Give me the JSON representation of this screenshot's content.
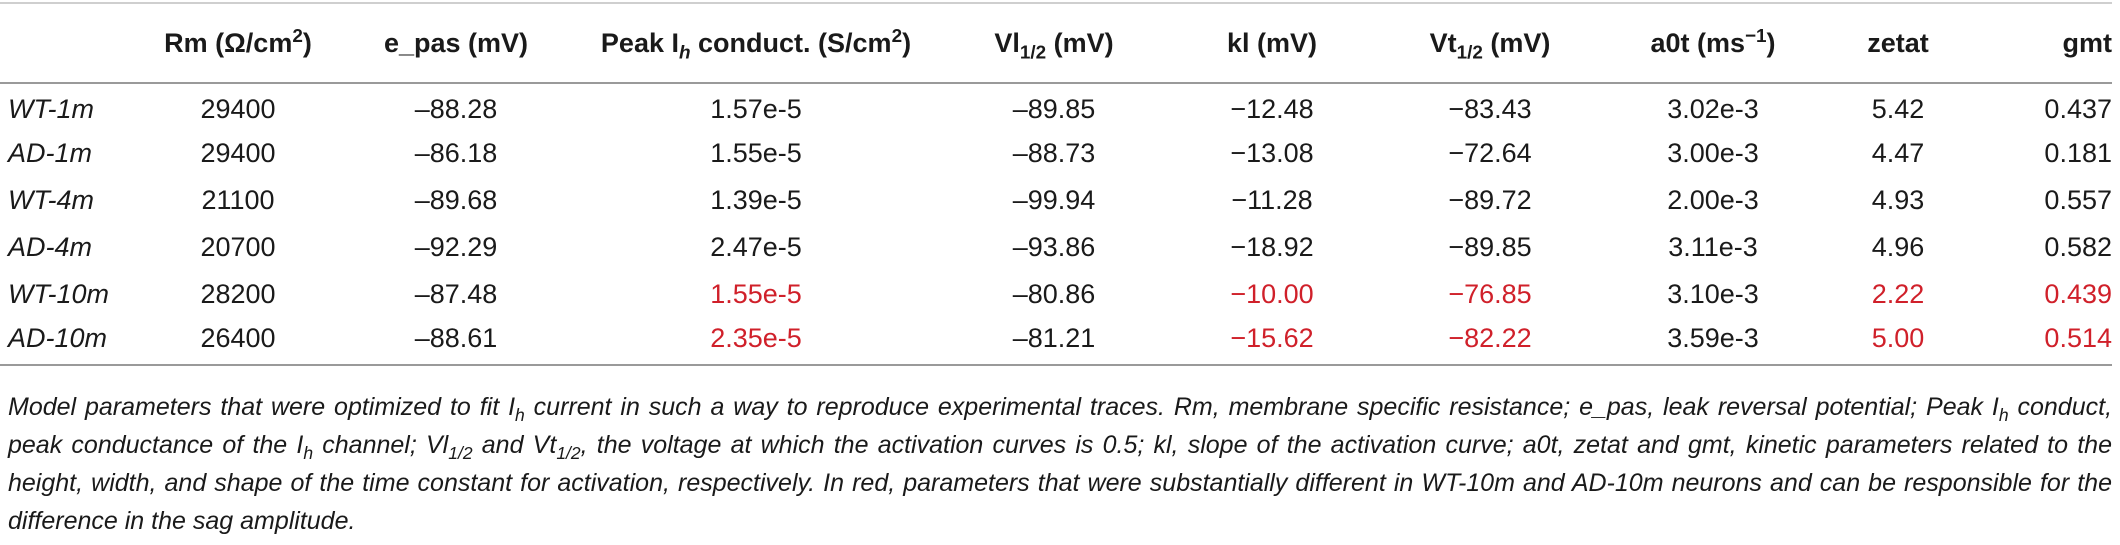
{
  "table": {
    "headers": {
      "corner": "",
      "rm": {
        "main": "Rm (Ω/cm",
        "sup": "2",
        "tail": ")"
      },
      "epas": "e_pas (mV)",
      "peak": {
        "main": "Peak I",
        "sub": "h",
        "tail": " conduct. (S/cm",
        "sup": "2",
        "end": ")"
      },
      "vl": {
        "main": "Vl",
        "sub": "1/2",
        "tail": " (mV)"
      },
      "kl": "kl (mV)",
      "vt": {
        "main": "Vt",
        "sub": "1/2",
        "tail": " (mV)"
      },
      "a0t": {
        "main": "a0t (ms",
        "sup": "−1",
        "tail": ")"
      },
      "zetat": "zetat",
      "gmt": "gmt"
    },
    "rows": [
      {
        "label": "WT-1m",
        "rm": "29400",
        "epas": "–88.28",
        "peak": "1.57e-5",
        "vl": "–89.85",
        "kl": "−12.48",
        "vt": "−83.43",
        "a0t": "3.02e-3",
        "zetat": "5.42",
        "gmt": "0.437"
      },
      {
        "label": "AD-1m",
        "rm": "29400",
        "epas": "–86.18",
        "peak": "1.55e-5",
        "vl": "–88.73",
        "kl": "−13.08",
        "vt": "−72.64",
        "a0t": "3.00e-3",
        "zetat": "4.47",
        "gmt": "0.181"
      },
      {
        "label": "WT-4m",
        "rm": "21100",
        "epas": "–89.68",
        "peak": "1.39e-5",
        "vl": "–99.94",
        "kl": "−11.28",
        "vt": "−89.72",
        "a0t": "2.00e-3",
        "zetat": "4.93",
        "gmt": "0.557"
      },
      {
        "label": "AD-4m",
        "rm": "20700",
        "epas": "–92.29",
        "peak": "2.47e-5",
        "vl": "–93.86",
        "kl": "−18.92",
        "vt": "−89.85",
        "a0t": "3.11e-3",
        "zetat": "4.96",
        "gmt": "0.582"
      },
      {
        "label": "WT-10m",
        "rm": "28200",
        "epas": "–87.48",
        "peak": "1.55e-5",
        "vl": "–80.86",
        "kl": "−10.00",
        "vt": "−76.85",
        "a0t": "3.10e-3",
        "zetat": "2.22",
        "gmt": "0.439"
      },
      {
        "label": "AD-10m",
        "rm": "26400",
        "epas": "–88.61",
        "peak": "2.35e-5",
        "vl": "–81.21",
        "kl": "−15.62",
        "vt": "−82.22",
        "a0t": "3.59e-3",
        "zetat": "5.00",
        "gmt": "0.514"
      }
    ],
    "highlight_color": "#d0202a"
  },
  "caption": {
    "p1": "Model parameters that were optimized to fit I",
    "p1_sub": "h",
    "p2": " current in such a way to reproduce experimental traces. Rm, membrane specific resistance; e_pas, leak reversal potential; Peak I",
    "p2_sub": "h",
    "p3": " conduct, peak conductance of the I",
    "p3_sub": "h",
    "p4": " channel; Vl",
    "p4_sub": "1/2",
    "p5": " and Vt",
    "p5_sub": "1/2",
    "p6": ", the voltage at which the activation curves is 0.5; kl, slope of the activation curve; a0t, zetat and gmt, kinetic parameters related to the height, width, and shape of the time constant for activation, respectively. In red, parameters that were substantially different in WT-10m and AD-10m neurons and can be responsible for the difference in the sag amplitude."
  }
}
